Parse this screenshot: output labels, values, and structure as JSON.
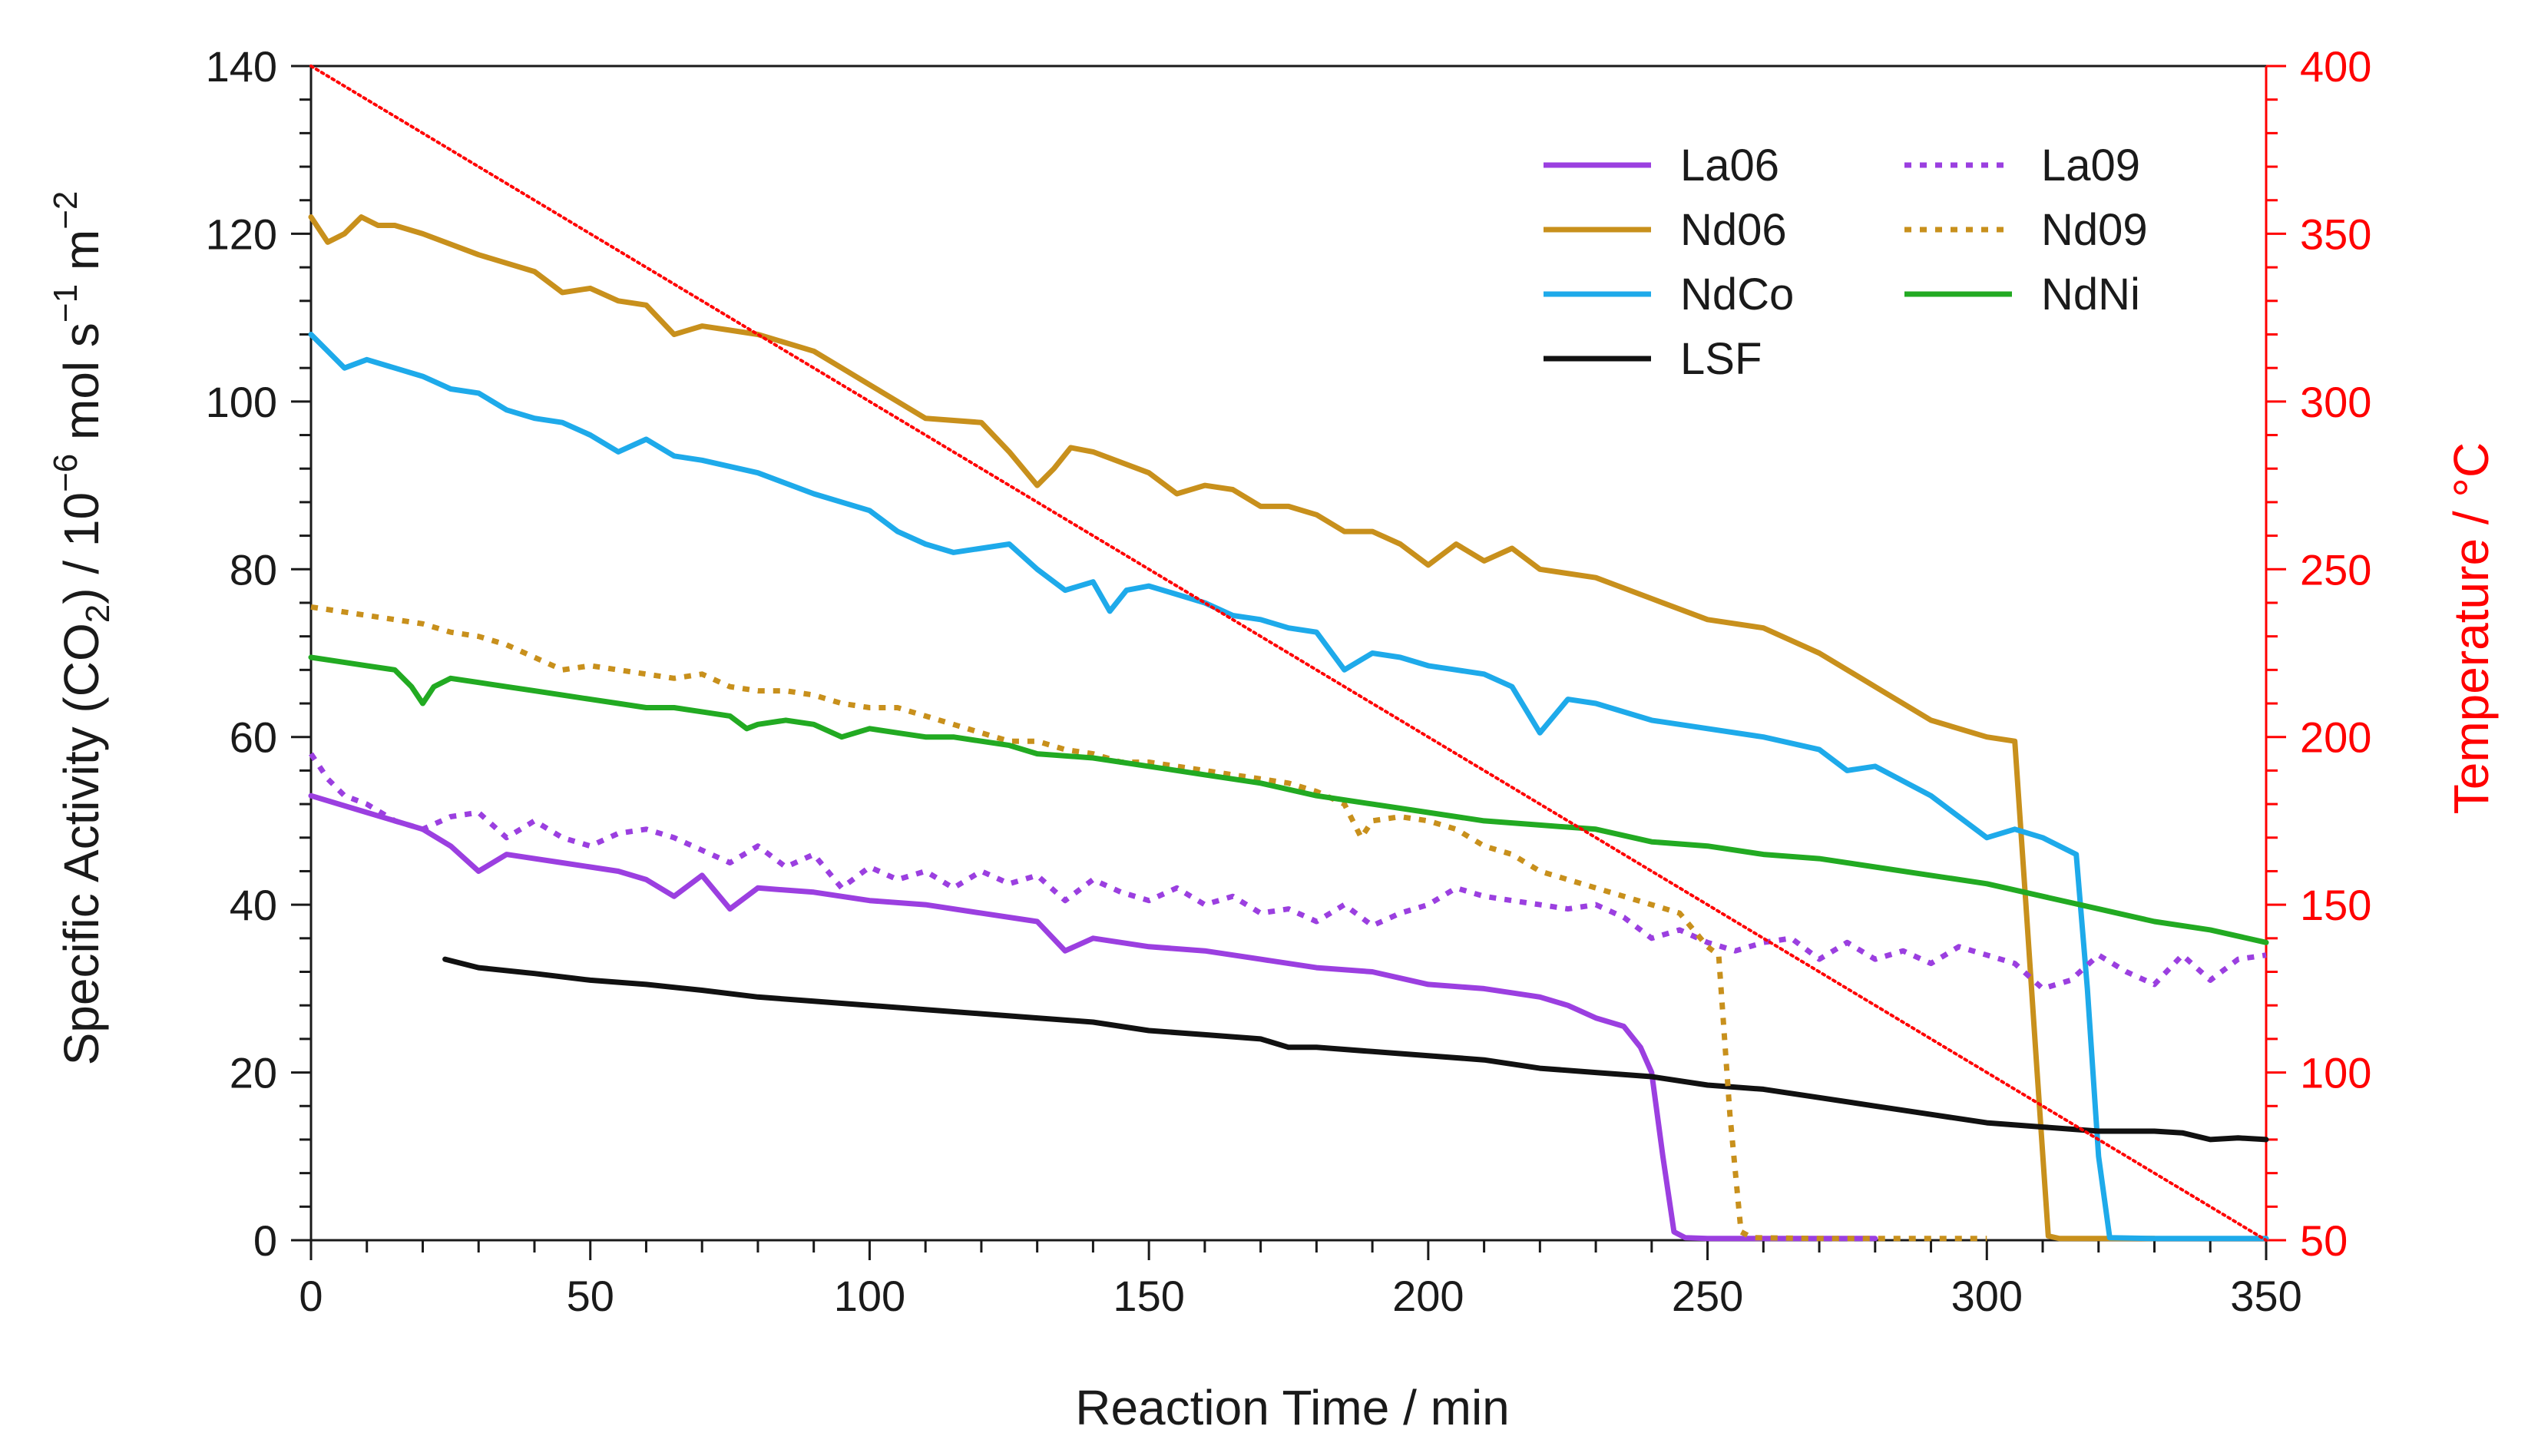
{
  "chart_data": {
    "type": "line",
    "xlabel": "Reaction Time / min",
    "ylabel": {
      "main": "Specific Activity (CO",
      "sub": "2",
      "mid": ") / 10",
      "sup1": "−6",
      "unit1": " mol s",
      "sup2": "−1",
      "unit2": " m",
      "sup3": "−2"
    },
    "y2label": "Temperature / °C",
    "xlim": [
      0,
      350
    ],
    "ylim": [
      0,
      140
    ],
    "y2lim": [
      50,
      400
    ],
    "xticks": [
      0,
      50,
      100,
      150,
      200,
      250,
      300,
      350
    ],
    "yticks": [
      0,
      20,
      40,
      60,
      80,
      100,
      120,
      140
    ],
    "y2ticks": [
      50,
      100,
      150,
      200,
      250,
      300,
      350,
      400
    ],
    "legend_position": "top-right",
    "colors": {
      "axis": "#1a1a1a",
      "temperature_axis": "#ff0000"
    },
    "series": [
      {
        "name": "La06",
        "color": "#9b3fe0",
        "dash": "solid",
        "legend_col": 0,
        "legend_row": 0,
        "x": [
          0,
          5,
          10,
          15,
          20,
          25,
          30,
          35,
          40,
          45,
          50,
          55,
          60,
          65,
          70,
          75,
          80,
          90,
          100,
          110,
          120,
          130,
          135,
          140,
          145,
          150,
          160,
          170,
          180,
          190,
          200,
          210,
          220,
          225,
          230,
          235,
          238,
          240,
          242,
          244,
          246,
          250,
          260,
          270,
          280
        ],
        "y": [
          53,
          52,
          51,
          50,
          49,
          47,
          44,
          46,
          45.5,
          45,
          44.5,
          44,
          43,
          41,
          43.5,
          39.5,
          42,
          41.5,
          40.5,
          40,
          39,
          38,
          34.5,
          36,
          35.5,
          35,
          34.5,
          33.5,
          32.5,
          32,
          30.5,
          30,
          29,
          28,
          26.5,
          25.5,
          23,
          20,
          10,
          1,
          0.3,
          0.2,
          0.2,
          0.2,
          0.2
        ]
      },
      {
        "name": "Nd06",
        "color": "#c8901c",
        "dash": "solid",
        "legend_col": 0,
        "legend_row": 1,
        "x": [
          0,
          3,
          6,
          9,
          12,
          15,
          20,
          30,
          40,
          45,
          50,
          55,
          60,
          65,
          70,
          75,
          80,
          90,
          100,
          110,
          120,
          125,
          130,
          133,
          136,
          140,
          150,
          155,
          160,
          165,
          170,
          175,
          180,
          185,
          190,
          195,
          200,
          205,
          210,
          215,
          220,
          230,
          240,
          250,
          260,
          270,
          280,
          290,
          300,
          305,
          307,
          309,
          311,
          313,
          320,
          330
        ],
        "y": [
          122,
          119,
          120,
          122,
          121,
          121,
          120,
          117.5,
          115.5,
          113,
          113.5,
          112,
          111.5,
          108,
          109,
          108.5,
          108,
          106,
          102,
          98,
          97.5,
          94,
          90,
          92,
          94.5,
          94,
          91.5,
          89,
          90,
          89.5,
          87.5,
          87.5,
          86.5,
          84.5,
          84.5,
          83,
          80.5,
          83,
          81,
          82.5,
          80,
          79,
          76.5,
          74,
          73,
          70,
          66,
          62,
          60,
          59.5,
          40,
          20,
          0.5,
          0.2,
          0.2,
          0.2
        ]
      },
      {
        "name": "NdCo",
        "color": "#1eaaea",
        "dash": "solid",
        "legend_col": 0,
        "legend_row": 2,
        "x": [
          0,
          3,
          6,
          10,
          15,
          20,
          25,
          30,
          35,
          40,
          45,
          50,
          55,
          60,
          65,
          70,
          80,
          90,
          100,
          105,
          110,
          115,
          120,
          125,
          130,
          135,
          140,
          143,
          146,
          150,
          155,
          160,
          165,
          170,
          175,
          180,
          185,
          190,
          195,
          200,
          205,
          210,
          215,
          220,
          225,
          230,
          240,
          250,
          260,
          270,
          275,
          280,
          290,
          300,
          305,
          310,
          316,
          318,
          320,
          322,
          330,
          340,
          350
        ],
        "y": [
          108,
          106,
          104,
          105,
          104,
          103,
          101.5,
          101,
          99,
          98,
          97.5,
          96,
          94,
          95.5,
          93.5,
          93,
          91.5,
          89,
          87,
          84.5,
          83,
          82,
          82.5,
          83,
          80,
          77.5,
          78.5,
          75,
          77.5,
          78,
          77,
          76,
          74.5,
          74,
          73,
          72.5,
          68,
          70,
          69.5,
          68.5,
          68,
          67.5,
          66,
          60.5,
          64.5,
          64,
          62,
          61,
          60,
          58.5,
          56,
          56.5,
          53,
          48,
          49,
          48,
          46,
          30,
          10,
          0.3,
          0.2,
          0.2,
          0.2
        ]
      },
      {
        "name": "LSF",
        "color": "#111111",
        "dash": "solid",
        "legend_col": 0,
        "legend_row": 3,
        "x": [
          24,
          30,
          40,
          50,
          60,
          70,
          80,
          90,
          100,
          110,
          120,
          130,
          140,
          145,
          150,
          160,
          170,
          175,
          180,
          190,
          200,
          210,
          220,
          230,
          240,
          250,
          260,
          270,
          280,
          290,
          300,
          310,
          320,
          330,
          335,
          340,
          345,
          350
        ],
        "y": [
          33.5,
          32.5,
          31.8,
          31,
          30.5,
          29.8,
          29,
          28.5,
          28,
          27.5,
          27,
          26.5,
          26,
          25.5,
          25,
          24.5,
          24,
          23,
          23,
          22.5,
          22,
          21.5,
          20.5,
          20,
          19.5,
          18.5,
          18,
          17,
          16,
          15,
          14,
          13.5,
          13,
          13,
          12.8,
          12,
          12.2,
          12
        ]
      },
      {
        "name": "La09",
        "color": "#9b3fe0",
        "dash": "dot",
        "legend_col": 1,
        "legend_row": 0,
        "x": [
          0,
          3,
          6,
          10,
          15,
          20,
          25,
          30,
          35,
          40,
          45,
          50,
          55,
          60,
          65,
          70,
          75,
          80,
          85,
          90,
          95,
          100,
          105,
          110,
          115,
          120,
          125,
          130,
          135,
          140,
          145,
          150,
          155,
          160,
          165,
          170,
          175,
          180,
          185,
          190,
          195,
          200,
          205,
          210,
          215,
          220,
          225,
          230,
          235,
          240,
          245,
          250,
          255,
          260,
          265,
          270,
          275,
          280,
          285,
          290,
          295,
          300,
          305,
          310,
          315,
          320,
          325,
          330,
          335,
          340,
          345,
          350
        ],
        "y": [
          58,
          55,
          53,
          52,
          50,
          49,
          50.5,
          51,
          48,
          50,
          48,
          47,
          48.5,
          49,
          48,
          46.5,
          45,
          47,
          44.5,
          46,
          42,
          44.5,
          43,
          44,
          42,
          44,
          42.5,
          43.5,
          40.5,
          43,
          41.5,
          40.5,
          42,
          40,
          41,
          39,
          39.5,
          38,
          40,
          37.5,
          39,
          40,
          42,
          41,
          40.5,
          40,
          39.5,
          40,
          38.5,
          36,
          37,
          35.5,
          34.5,
          35.5,
          36,
          33.5,
          35.5,
          33.5,
          34.5,
          33,
          35,
          34,
          33,
          30,
          31,
          34,
          32,
          30.5,
          34,
          31,
          33.5,
          34
        ]
      },
      {
        "name": "Nd09",
        "color": "#c8901c",
        "dash": "dot",
        "legend_col": 1,
        "legend_row": 1,
        "x": [
          0,
          5,
          10,
          15,
          20,
          25,
          30,
          35,
          40,
          45,
          50,
          55,
          60,
          65,
          70,
          75,
          80,
          85,
          90,
          95,
          100,
          105,
          110,
          115,
          120,
          125,
          130,
          135,
          140,
          145,
          150,
          155,
          160,
          165,
          170,
          175,
          180,
          185,
          188,
          190,
          195,
          200,
          205,
          210,
          215,
          220,
          225,
          230,
          235,
          240,
          245,
          250,
          252,
          254,
          256,
          258,
          270,
          280,
          290,
          300
        ],
        "y": [
          75.5,
          75,
          74.5,
          74,
          73.5,
          72.5,
          72,
          71,
          69.5,
          68,
          68.5,
          68,
          67.5,
          67,
          67.5,
          66,
          65.5,
          65.5,
          65,
          64,
          63.5,
          63.5,
          62.5,
          61.5,
          60.5,
          59.5,
          59.5,
          58.5,
          58,
          57,
          57,
          56.5,
          56,
          55.5,
          55,
          54.5,
          53.5,
          52,
          48,
          50,
          50.5,
          50,
          49,
          47,
          46,
          44,
          43,
          42,
          41,
          40,
          39,
          35,
          34,
          15,
          1,
          0.3,
          0.2,
          0.2,
          0.2,
          0.2
        ]
      },
      {
        "name": "NdNi",
        "color": "#22aa22",
        "dash": "solid",
        "legend_col": 1,
        "legend_row": 2,
        "x": [
          0,
          5,
          10,
          15,
          18,
          20,
          22,
          25,
          30,
          35,
          40,
          45,
          50,
          55,
          60,
          65,
          70,
          75,
          78,
          80,
          85,
          90,
          95,
          100,
          105,
          110,
          115,
          120,
          125,
          130,
          140,
          150,
          160,
          170,
          180,
          190,
          200,
          210,
          220,
          230,
          240,
          250,
          260,
          270,
          280,
          290,
          300,
          310,
          320,
          330,
          340,
          350
        ],
        "y": [
          69.5,
          69,
          68.5,
          68,
          66,
          64,
          66,
          67,
          66.5,
          66,
          65.5,
          65,
          64.5,
          64,
          63.5,
          63.5,
          63,
          62.5,
          61,
          61.5,
          62,
          61.5,
          60,
          61,
          60.5,
          60,
          60,
          59.5,
          59,
          58,
          57.5,
          56.5,
          55.5,
          54.5,
          53,
          52,
          51,
          50,
          49.5,
          49,
          47.5,
          47,
          46,
          45.5,
          44.5,
          43.5,
          42.5,
          41,
          39.5,
          38,
          37,
          35.5
        ]
      },
      {
        "name": "",
        "color": "#ff0000",
        "dash": "finedot",
        "axis": "right",
        "legend": false,
        "x": [
          0,
          350
        ],
        "y": [
          400,
          50
        ]
      }
    ]
  }
}
